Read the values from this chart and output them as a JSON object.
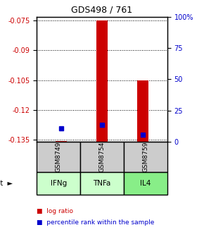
{
  "title": "GDS498 / 761",
  "samples": [
    "GSM8749",
    "GSM8754",
    "GSM8759"
  ],
  "agents": [
    "IFNg",
    "TNFa",
    "IL4"
  ],
  "log_ratio_values": [
    -0.1355,
    -0.075,
    -0.105
  ],
  "log_ratio_base": -0.136,
  "percentile_values": [
    10.5,
    13.5,
    5.5
  ],
  "ylim_left": [
    -0.136,
    -0.073
  ],
  "ylim_right": [
    0,
    100
  ],
  "yticks_left": [
    -0.075,
    -0.09,
    -0.105,
    -0.12,
    -0.135
  ],
  "yticks_right": [
    100,
    75,
    50,
    25,
    0
  ],
  "left_color": "#cc0000",
  "right_color": "#0000cc",
  "bar_color": "#cc0000",
  "dot_color": "#0000cc",
  "sample_box_color": "#cccccc",
  "agent_box_color": "#aaffaa",
  "agent_box_colors": [
    "#ccffcc",
    "#ccffcc",
    "#88ee88"
  ],
  "grid_color": "#000000",
  "bg_color": "#ffffff"
}
